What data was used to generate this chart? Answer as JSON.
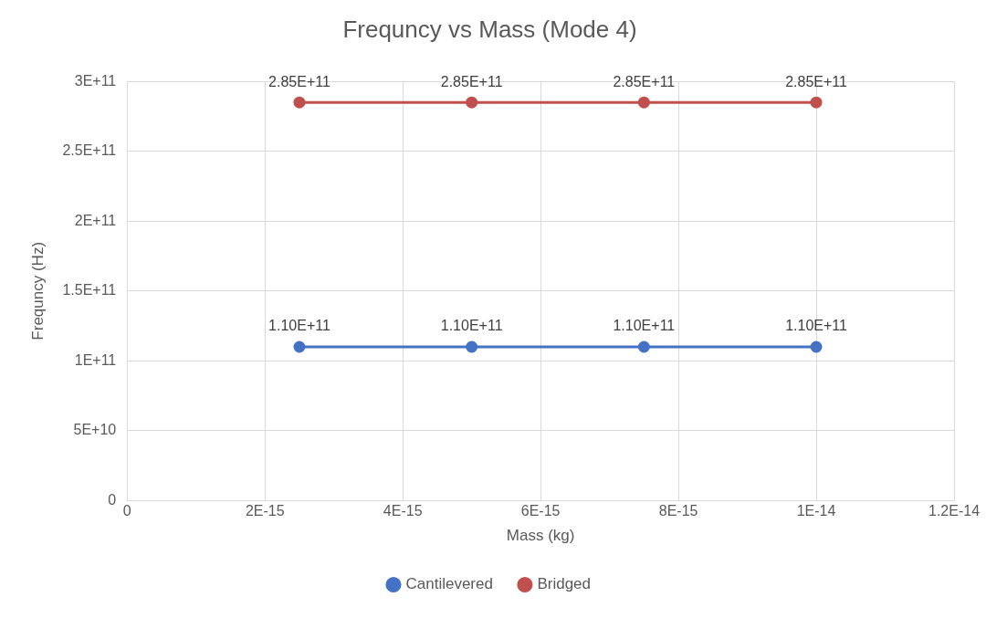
{
  "chart_data": {
    "type": "line",
    "title": "Frequncy vs Mass (Mode 4)",
    "xlabel": "Mass (kg)",
    "ylabel": "Frequncy (Hz)",
    "x": [
      2.5e-15,
      5e-15,
      7.5e-15,
      1e-14
    ],
    "series": [
      {
        "name": "Cantilevered",
        "color": "#4472c4",
        "values": [
          110000000000.0,
          110000000000.0,
          110000000000.0,
          110000000000.0
        ],
        "value_labels": [
          "1.10E+11",
          "1.10E+11",
          "1.10E+11",
          "1.10E+11"
        ]
      },
      {
        "name": "Bridged",
        "color": "#c0504d",
        "values": [
          285000000000.0,
          285000000000.0,
          285000000000.0,
          285000000000.0
        ],
        "value_labels": [
          "2.85E+11",
          "2.85E+11",
          "2.85E+11",
          "2.85E+11"
        ]
      }
    ],
    "xlim": [
      0,
      1.2e-14
    ],
    "xticks": [
      0,
      {
        "value": 2e-15,
        "label": "2E-15"
      },
      {
        "value": 4e-15,
        "label": "4E-15"
      },
      {
        "value": 6e-15,
        "label": "6E-15"
      },
      {
        "value": 8e-15,
        "label": "8E-15"
      },
      {
        "value": 1e-14,
        "label": "1E-14"
      },
      {
        "value": 1.2e-14,
        "label": "1.2E-14"
      }
    ],
    "ylim": [
      0,
      300000000000.0
    ],
    "yticks": [
      0,
      {
        "value": 50000000000.0,
        "label": "5E+10"
      },
      {
        "value": 100000000000.0,
        "label": "1E+11"
      },
      {
        "value": 150000000000.0,
        "label": "1.5E+11"
      },
      {
        "value": 200000000000.0,
        "label": "2E+11"
      },
      {
        "value": 250000000000.0,
        "label": "2.5E+11"
      },
      {
        "value": 300000000000.0,
        "label": "3E+11"
      }
    ],
    "grid": true,
    "legend": "bottom",
    "marker": "circle",
    "line_style": "solid"
  }
}
